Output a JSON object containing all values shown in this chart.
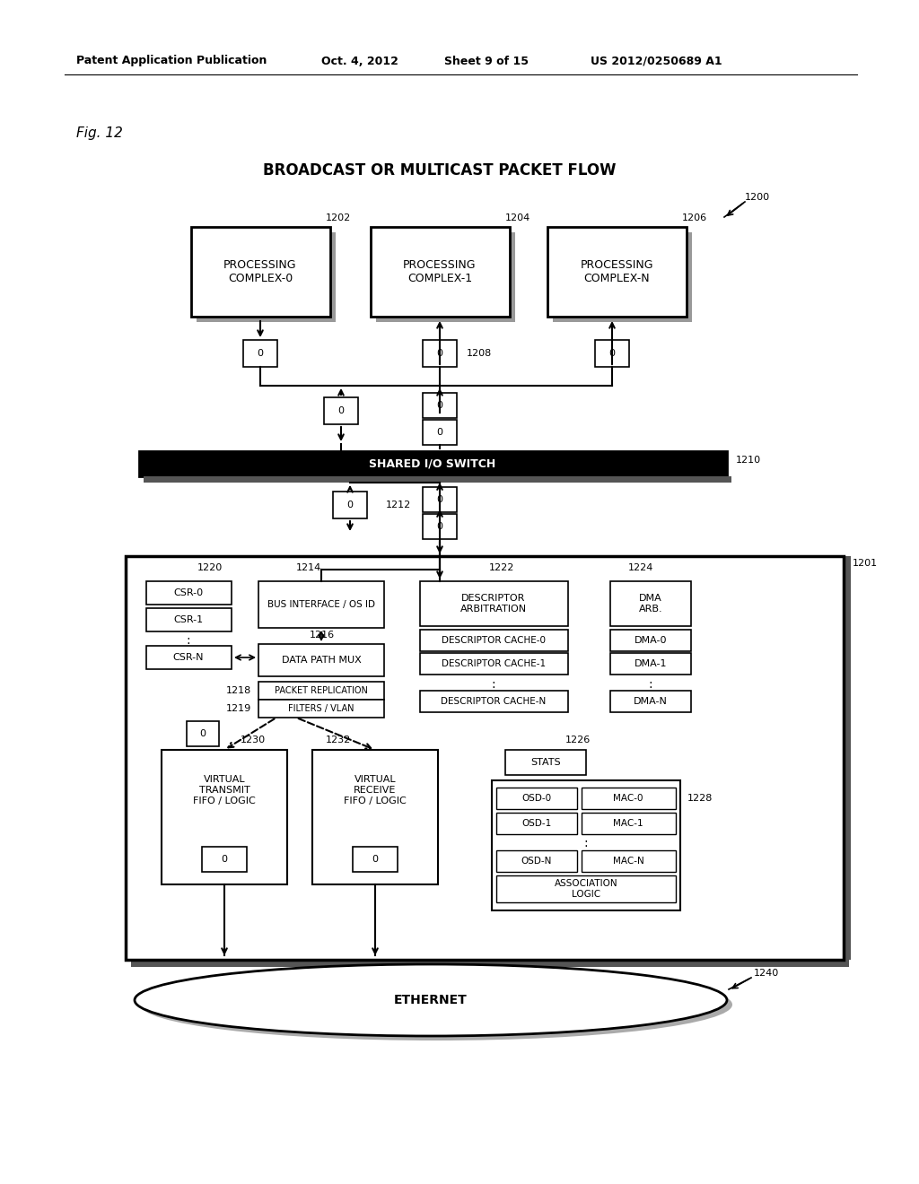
{
  "bg_color": "#ffffff",
  "header_left": "Patent Application Publication",
  "header_mid1": "Oct. 4, 2012",
  "header_mid2": "Sheet 9 of 15",
  "header_right": "US 2012/0250689 A1",
  "fig_label": "Fig. 12",
  "title": "BROADCAST OR MULTICAST PACKET FLOW"
}
